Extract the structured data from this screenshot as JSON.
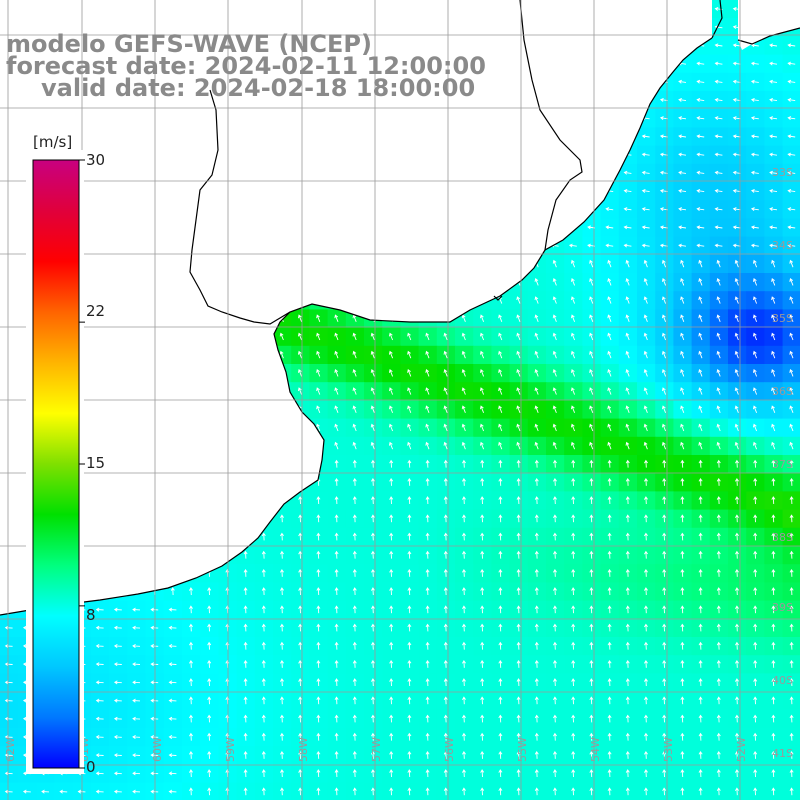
{
  "title": {
    "model": "modelo GEFS-WAVE (NCEP)",
    "forecast": "forecast date: 2024-02-11 12:00:00",
    "valid": "valid date: 2024-02-18 18:00:00"
  },
  "colorbar": {
    "unit": "[m/s]",
    "range": [
      0,
      30
    ],
    "ticks": [
      "30",
      "22",
      "15",
      "8",
      "0"
    ],
    "tick_values": [
      30,
      22,
      15,
      8,
      0
    ],
    "colors": [
      "#0000ff",
      "#0078ff",
      "#00c8ff",
      "#00ffff",
      "#00ff7f",
      "#00e000",
      "#7fe000",
      "#ffff00",
      "#ffb400",
      "#ff6400",
      "#ff0000",
      "#e0003c",
      "#c80080"
    ]
  },
  "map": {
    "lat_labels": [
      "33S",
      "34S",
      "35S",
      "36S",
      "37S",
      "38S",
      "39S",
      "40S",
      "41S"
    ],
    "lon_labels": [
      "62W",
      "61W",
      "60W",
      "59W",
      "58W",
      "57W",
      "56W",
      "55W",
      "54W",
      "53W",
      "52W",
      "51W"
    ],
    "land_color": "#ffffff",
    "grid_color": "#9a9a9a",
    "coast_color": "#000000",
    "arrow_color": "#ffffff"
  }
}
